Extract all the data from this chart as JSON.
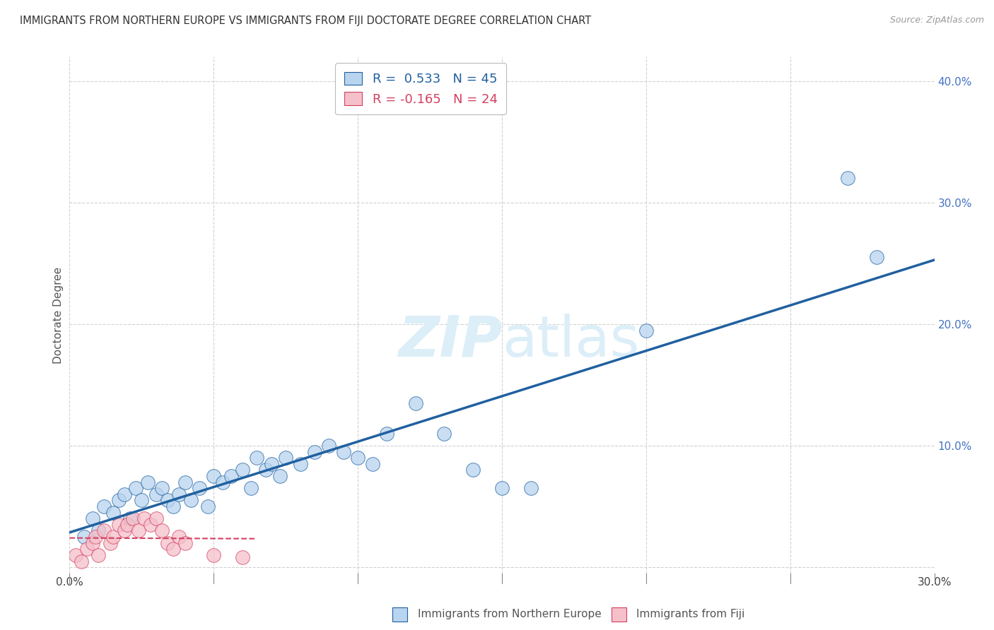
{
  "title": "IMMIGRANTS FROM NORTHERN EUROPE VS IMMIGRANTS FROM FIJI DOCTORATE DEGREE CORRELATION CHART",
  "source": "Source: ZipAtlas.com",
  "xlabel_blue": "Immigrants from Northern Europe",
  "xlabel_pink": "Immigrants from Fiji",
  "ylabel": "Doctorate Degree",
  "xlim": [
    0.0,
    0.3
  ],
  "ylim": [
    -0.005,
    0.42
  ],
  "xticks": [
    0.0,
    0.05,
    0.1,
    0.15,
    0.2,
    0.25,
    0.3
  ],
  "yticks": [
    0.0,
    0.1,
    0.2,
    0.3,
    0.4
  ],
  "ytick_labels": [
    "",
    "10.0%",
    "20.0%",
    "30.0%",
    "40.0%"
  ],
  "xtick_labels": [
    "0.0%",
    "",
    "",
    "",
    "",
    "",
    "30.0%"
  ],
  "blue_R": 0.533,
  "blue_N": 45,
  "pink_R": -0.165,
  "pink_N": 24,
  "blue_color": "#b8d4ee",
  "pink_color": "#f5c0ca",
  "blue_line_color": "#2060a0",
  "pink_line_color": "#d44060",
  "legend_blue_fill": "#b8d4ee",
  "legend_pink_fill": "#f5c0ca",
  "blue_scatter_x": [
    0.005,
    0.008,
    0.01,
    0.012,
    0.015,
    0.017,
    0.019,
    0.021,
    0.023,
    0.025,
    0.027,
    0.03,
    0.032,
    0.034,
    0.036,
    0.038,
    0.04,
    0.042,
    0.045,
    0.048,
    0.05,
    0.053,
    0.056,
    0.06,
    0.063,
    0.065,
    0.068,
    0.07,
    0.073,
    0.075,
    0.08,
    0.085,
    0.09,
    0.095,
    0.1,
    0.105,
    0.11,
    0.12,
    0.13,
    0.14,
    0.15,
    0.16,
    0.2,
    0.27,
    0.28
  ],
  "blue_scatter_y": [
    0.025,
    0.04,
    0.03,
    0.05,
    0.045,
    0.055,
    0.06,
    0.04,
    0.065,
    0.055,
    0.07,
    0.06,
    0.065,
    0.055,
    0.05,
    0.06,
    0.07,
    0.055,
    0.065,
    0.05,
    0.075,
    0.07,
    0.075,
    0.08,
    0.065,
    0.09,
    0.08,
    0.085,
    0.075,
    0.09,
    0.085,
    0.095,
    0.1,
    0.095,
    0.09,
    0.085,
    0.11,
    0.135,
    0.11,
    0.08,
    0.065,
    0.065,
    0.195,
    0.32,
    0.255
  ],
  "pink_scatter_x": [
    0.002,
    0.004,
    0.006,
    0.008,
    0.009,
    0.01,
    0.012,
    0.014,
    0.015,
    0.017,
    0.019,
    0.02,
    0.022,
    0.024,
    0.026,
    0.028,
    0.03,
    0.032,
    0.034,
    0.036,
    0.038,
    0.04,
    0.05,
    0.06
  ],
  "pink_scatter_y": [
    0.01,
    0.005,
    0.015,
    0.02,
    0.025,
    0.01,
    0.03,
    0.02,
    0.025,
    0.035,
    0.03,
    0.035,
    0.04,
    0.03,
    0.04,
    0.035,
    0.04,
    0.03,
    0.02,
    0.015,
    0.025,
    0.02,
    0.01,
    0.008
  ],
  "watermark_zip": "ZIP",
  "watermark_atlas": "atlas",
  "watermark_color": "#dceef8",
  "background_color": "#ffffff",
  "grid_color": "#cccccc",
  "tick_color": "#4472c4"
}
